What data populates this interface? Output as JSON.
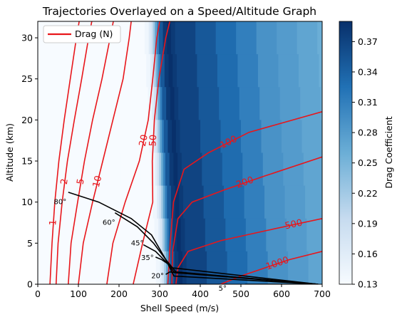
{
  "chart_data": {
    "type": "contour",
    "title": "Trajectories Overlayed on a Speed/Altitude Graph",
    "xlabel": "Shell Speed (m/s)",
    "ylabel": "Altitude (km)",
    "xlim": [
      0,
      700
    ],
    "ylim": [
      0,
      32
    ],
    "xticks": [
      0,
      100,
      200,
      300,
      400,
      500,
      600,
      700
    ],
    "yticks": [
      0,
      5,
      10,
      15,
      20,
      25,
      30
    ],
    "colorbar": {
      "label": "Drag Coefficient",
      "range": [
        0.13,
        0.39
      ],
      "ticks": [
        "0.13",
        "0.16",
        "0.19",
        "0.22",
        "0.25",
        "0.28",
        "0.31",
        "0.34",
        "0.37"
      ],
      "colormap": "Blues"
    },
    "legend": {
      "position": "upper-left",
      "entries": [
        {
          "label": "Drag (N)",
          "color": "#e8161b"
        }
      ]
    },
    "drag_contours": [
      {
        "level": 1,
        "label": "1",
        "points": [
          [
            30,
            0
          ],
          [
            35,
            5
          ],
          [
            42,
            10
          ],
          [
            52,
            15
          ],
          [
            65,
            20
          ],
          [
            80,
            25
          ],
          [
            95,
            30
          ],
          [
            102,
            32
          ]
        ]
      },
      {
        "level": 2,
        "label": "2",
        "points": [
          [
            45,
            0
          ],
          [
            50,
            5
          ],
          [
            60,
            10
          ],
          [
            73,
            15
          ],
          [
            90,
            20
          ],
          [
            108,
            25
          ],
          [
            125,
            30
          ],
          [
            133,
            32
          ]
        ]
      },
      {
        "level": 5,
        "label": "5",
        "points": [
          [
            75,
            0
          ],
          [
            82,
            5
          ],
          [
            98,
            10
          ],
          [
            115,
            15
          ],
          [
            135,
            20
          ],
          [
            158,
            25
          ],
          [
            178,
            30
          ],
          [
            186,
            32
          ]
        ]
      },
      {
        "level": 10,
        "label": "10",
        "points": [
          [
            100,
            0
          ],
          [
            112,
            5
          ],
          [
            135,
            10
          ],
          [
            160,
            15
          ],
          [
            185,
            20
          ],
          [
            210,
            25
          ],
          [
            225,
            30
          ],
          [
            230,
            32
          ]
        ]
      },
      {
        "level": 20,
        "label": "20",
        "points": [
          [
            170,
            0
          ],
          [
            185,
            5
          ],
          [
            215,
            10
          ],
          [
            250,
            15
          ],
          [
            272,
            20
          ],
          [
            283,
            25
          ],
          [
            293,
            30
          ],
          [
            300,
            32
          ]
        ]
      },
      {
        "level": 50,
        "label": "50",
        "points": [
          [
            235,
            0
          ],
          [
            258,
            5
          ],
          [
            283,
            10
          ],
          [
            282,
            15
          ],
          [
            287,
            20
          ],
          [
            298,
            25
          ],
          [
            315,
            30
          ],
          [
            325,
            32
          ]
        ]
      },
      {
        "level": 100,
        "label": "100",
        "points": [
          [
            320,
            0
          ],
          [
            326,
            5
          ],
          [
            334,
            10
          ],
          [
            360,
            14
          ],
          [
            420,
            16
          ],
          [
            520,
            18.5
          ],
          [
            700,
            21
          ]
        ]
      },
      {
        "level": 200,
        "label": "200",
        "points": [
          [
            330,
            0
          ],
          [
            332,
            4
          ],
          [
            345,
            8
          ],
          [
            380,
            10
          ],
          [
            460,
            11.5
          ],
          [
            560,
            13.2
          ],
          [
            700,
            15.5
          ]
        ]
      },
      {
        "level": 500,
        "label": "500",
        "points": [
          [
            340,
            0
          ],
          [
            345,
            2
          ],
          [
            370,
            4
          ],
          [
            450,
            5.3
          ],
          [
            560,
            6.5
          ],
          [
            700,
            8
          ]
        ]
      },
      {
        "level": 1000,
        "label": "1000",
        "points": [
          [
            450,
            0
          ],
          [
            500,
            1
          ],
          [
            560,
            2
          ],
          [
            620,
            3
          ],
          [
            700,
            4
          ]
        ]
      }
    ],
    "trajectories": [
      {
        "angle": "80°",
        "points": [
          [
            75,
            11.2
          ],
          [
            150,
            10
          ],
          [
            230,
            8
          ],
          [
            280,
            6
          ],
          [
            315,
            3
          ],
          [
            335,
            1
          ],
          [
            690,
            0
          ]
        ]
      },
      {
        "angle": "60°",
        "points": [
          [
            190,
            8.7
          ],
          [
            245,
            7
          ],
          [
            285,
            5
          ],
          [
            315,
            3
          ],
          [
            340,
            1.5
          ],
          [
            690,
            0
          ]
        ]
      },
      {
        "angle": "45°",
        "points": [
          [
            260,
            4.8
          ],
          [
            290,
            4
          ],
          [
            310,
            3
          ],
          [
            330,
            2
          ],
          [
            690,
            0
          ]
        ]
      },
      {
        "angle": "35°",
        "points": [
          [
            290,
            3.3
          ],
          [
            305,
            3
          ],
          [
            320,
            2.5
          ],
          [
            335,
            1.5
          ],
          [
            690,
            0
          ]
        ]
      },
      {
        "angle": "20°",
        "points": [
          [
            315,
            1.2
          ],
          [
            325,
            1.5
          ],
          [
            340,
            1.4
          ],
          [
            690,
            0
          ]
        ]
      },
      {
        "angle": "5°",
        "points": [
          [
            510,
            0
          ],
          [
            690,
            0
          ]
        ]
      }
    ],
    "traj_labels": [
      {
        "text": "80°",
        "x": 55,
        "y": 10
      },
      {
        "text": "60°",
        "x": 175,
        "y": 7.5
      },
      {
        "text": "45°",
        "x": 245,
        "y": 5
      },
      {
        "text": "35°",
        "x": 270,
        "y": 3.2
      },
      {
        "text": "20°",
        "x": 295,
        "y": 1
      },
      {
        "text": "5°",
        "x": 455,
        "y": -0.5
      }
    ],
    "colormap_field": {
      "x": [
        200,
        250,
        275,
        285,
        290,
        295,
        300,
        305,
        310,
        320,
        330,
        340,
        350,
        400,
        450,
        500,
        550,
        600,
        650,
        700
      ],
      "cd_at_x": [
        0.13,
        0.13,
        0.14,
        0.16,
        0.18,
        0.22,
        0.27,
        0.31,
        0.35,
        0.38,
        0.39,
        0.38,
        0.37,
        0.35,
        0.33,
        0.31,
        0.29,
        0.28,
        0.27,
        0.26
      ]
    }
  }
}
